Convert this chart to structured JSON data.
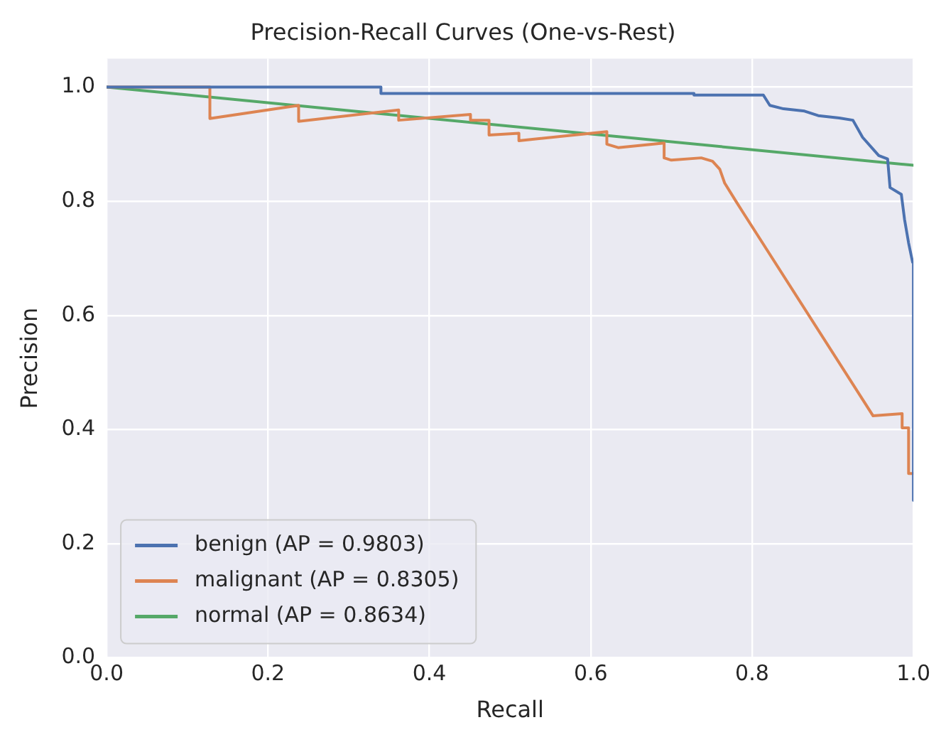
{
  "chart_data": {
    "type": "line",
    "title": "Precision-Recall Curves (One-vs-Rest)",
    "xlabel": "Recall",
    "ylabel": "Precision",
    "xlim": [
      0,
      1
    ],
    "ylim": [
      0,
      1.05
    ],
    "xticks": [
      {
        "value": 0,
        "label": "0.0"
      },
      0.2,
      0.4,
      0.6,
      0.8,
      {
        "value": 1,
        "label": "1.0"
      }
    ],
    "yticks": [
      {
        "value": 0,
        "label": "0.0"
      },
      0.2,
      0.4,
      0.6,
      0.8,
      {
        "value": 1,
        "label": "1.0"
      }
    ],
    "grid": true,
    "legend": "bottom left",
    "marker": "none",
    "line_style": "solid",
    "series": [
      {
        "name": "benign (AP = 0.9803)",
        "color": "#4c72b0",
        "x": [
          0,
          0.34,
          0.34,
          0.728,
          0.728,
          0.814,
          0.822,
          0.839,
          0.865,
          0.882,
          0.908,
          0.925,
          0.937,
          0.957,
          0.968,
          0.971,
          0.985,
          0.989,
          0.994,
          0.999,
          1,
          1
        ],
        "values": [
          1,
          1,
          0.989,
          0.989,
          0.986,
          0.986,
          0.968,
          0.962,
          0.958,
          0.95,
          0.946,
          0.942,
          0.912,
          0.88,
          0.874,
          0.824,
          0.812,
          0.768,
          0.727,
          0.693,
          0.693,
          0.276
        ]
      },
      {
        "name": "malignant (AP = 0.8305)",
        "color": "#dd8452",
        "x": [
          0,
          0.128,
          0.128,
          0.238,
          0.238,
          0.362,
          0.362,
          0.451,
          0.451,
          0.474,
          0.474,
          0.511,
          0.511,
          0.62,
          0.62,
          0.634,
          0.691,
          0.691,
          0.7,
          0.737,
          0.751,
          0.76,
          0.766,
          0.78,
          0.789,
          0.95,
          0.986,
          0.986,
          0.994,
          0.994,
          1
        ],
        "values": [
          1,
          1,
          0.945,
          0.968,
          0.94,
          0.96,
          0.942,
          0.952,
          0.942,
          0.942,
          0.916,
          0.919,
          0.906,
          0.922,
          0.9,
          0.894,
          0.902,
          0.876,
          0.872,
          0.876,
          0.87,
          0.856,
          0.832,
          0.8,
          0.78,
          0.424,
          0.428,
          0.403,
          0.403,
          0.323,
          0.323
        ]
      },
      {
        "name": "normal (AP = 0.8634)",
        "color": "#55a868",
        "x": [
          0,
          1
        ],
        "values": [
          1,
          0.863
        ]
      }
    ]
  }
}
